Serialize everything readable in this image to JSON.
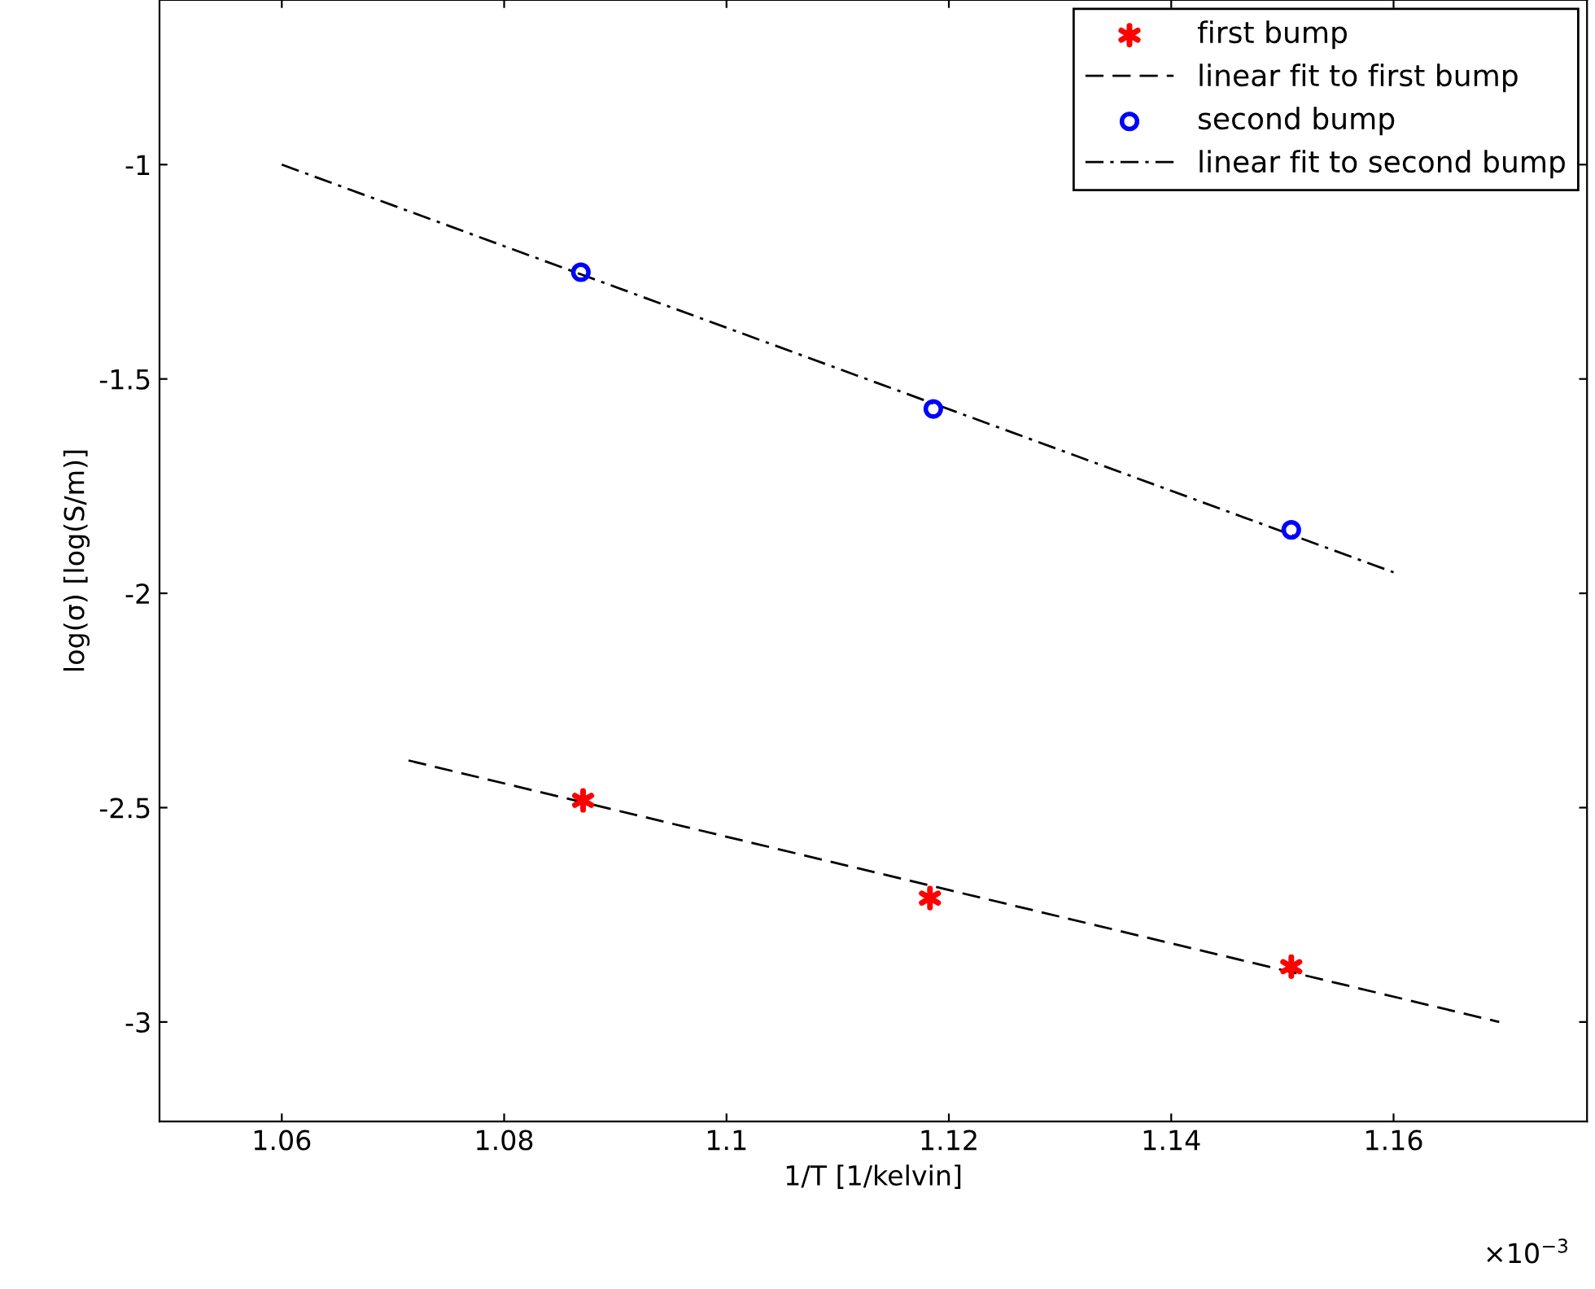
{
  "chart_data": {
    "type": "scatter",
    "xlabel": "1/T [1/kelvin]",
    "ylabel": "log(σ) [log(S/m)]",
    "xlim": [
      1.049,
      1.1774
    ],
    "ylim": [
      -3.232,
      -0.616
    ],
    "xticks": [
      1.06,
      1.08,
      {
        "value": 1.1,
        "label": "1.1"
      },
      1.12,
      1.14,
      1.16
    ],
    "yticks": [
      -3,
      -2.5,
      -2,
      -1.5,
      -1
    ],
    "grid": false,
    "legend": "top right",
    "annotations": [
      "×10$^{−3}$"
    ],
    "series": [
      {
        "name": "first bump",
        "type": "scatter",
        "color": "#ff0000",
        "marker": "cross",
        "x": [
          1.0871,
          1.1183,
          1.1508
        ],
        "values": [
          -2.483,
          -2.711,
          -2.871
        ]
      },
      {
        "name": "linear fit to first bump",
        "type": "line",
        "color": "#000000",
        "line_style": "dashed",
        "x": [
          1.0714,
          1.1695
        ],
        "values": [
          -2.39,
          -3.0
        ]
      },
      {
        "name": "second bump",
        "type": "scatter",
        "color": "#0000ff",
        "marker": "circle",
        "x": [
          1.0869,
          1.1186,
          1.1508
        ],
        "values": [
          -1.251,
          -1.57,
          -1.852
        ]
      },
      {
        "name": "linear fit to second bump",
        "type": "line",
        "color": "#000000",
        "line_style": "dashdot",
        "x": [
          1.06,
          1.16
        ],
        "values": [
          -1.0,
          -1.951
        ]
      }
    ]
  }
}
